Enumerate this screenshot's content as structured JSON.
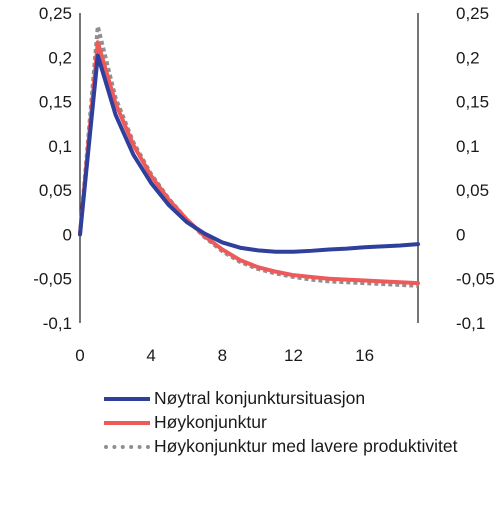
{
  "chart_data": {
    "type": "line",
    "title": "",
    "xlabel": "",
    "ylabel": "",
    "xlim": [
      0,
      19
    ],
    "ylim": [
      -0.1,
      0.25
    ],
    "x_ticks": [
      0,
      4,
      8,
      12,
      16
    ],
    "x_tick_labels": [
      "0",
      "4",
      "8",
      "12",
      "16"
    ],
    "y_ticks": [
      0.25,
      0.2,
      0.15,
      0.1,
      0.05,
      0,
      -0.05,
      -0.1
    ],
    "y_tick_labels": [
      "0,25",
      "0,2",
      "0,15",
      "0,1",
      "0,05",
      "0",
      "-0,05",
      "-0,1"
    ],
    "grid": false,
    "legend_position": "bottom",
    "x": [
      0,
      1,
      2,
      3,
      4,
      5,
      6,
      7,
      8,
      9,
      10,
      11,
      12,
      13,
      14,
      15,
      16,
      17,
      18,
      19
    ],
    "series": [
      {
        "name": "Nøytral konjunktursituasjon",
        "color": "#2e3f9c",
        "style": "solid",
        "values": [
          0,
          0.202,
          0.135,
          0.09,
          0.058,
          0.033,
          0.014,
          0.001,
          -0.009,
          -0.015,
          -0.018,
          -0.0195,
          -0.0195,
          -0.0185,
          -0.017,
          -0.016,
          -0.0145,
          -0.0135,
          -0.0125,
          -0.011
        ]
      },
      {
        "name": "Høykonjunktur",
        "color": "#ee5a5a",
        "style": "solid",
        "values": [
          0,
          0.217,
          0.148,
          0.101,
          0.066,
          0.039,
          0.017,
          -0.002,
          -0.017,
          -0.029,
          -0.037,
          -0.042,
          -0.046,
          -0.048,
          -0.05,
          -0.051,
          -0.052,
          -0.053,
          -0.054,
          -0.055
        ]
      },
      {
        "name": "Høykonjunktur med lavere produktivitet",
        "color": "#8f8f8f",
        "style": "dotted",
        "values": [
          0,
          0.235,
          0.154,
          0.104,
          0.068,
          0.04,
          0.017,
          -0.003,
          -0.019,
          -0.031,
          -0.039,
          -0.044,
          -0.048,
          -0.051,
          -0.053,
          -0.054,
          -0.055,
          -0.056,
          -0.057,
          -0.058
        ]
      }
    ]
  }
}
